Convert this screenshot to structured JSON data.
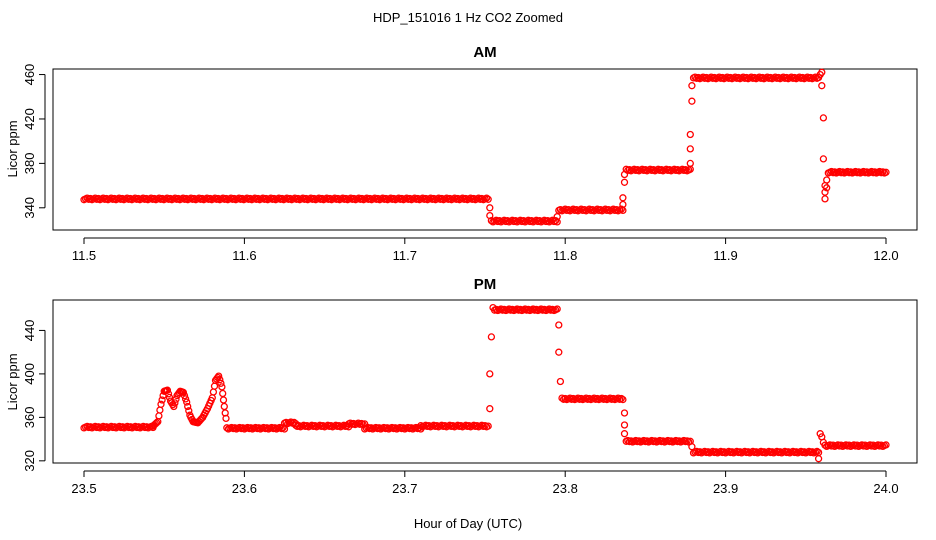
{
  "figure": {
    "title": "HDP_151016  1 Hz CO2 Zoomed",
    "xlabel": "Hour of Day (UTC)"
  },
  "style": {
    "point_color": "#ff0000",
    "marker": "open-circle"
  },
  "chart_data": [
    {
      "type": "scatter",
      "title": "AM",
      "xlabel": "",
      "ylabel": "Licor ppm",
      "xlim": [
        11.5,
        12.0
      ],
      "ylim": [
        320,
        465
      ],
      "xticks": [
        "11.5",
        "11.6",
        "11.7",
        "11.8",
        "11.9",
        "12.0"
      ],
      "yticks": [
        "340",
        "380",
        "420",
        "460"
      ],
      "grid": false,
      "segments": [
        {
          "x": [
            11.5,
            11.752
          ],
          "y": 348
        },
        {
          "x": [
            11.754,
            11.795
          ],
          "y": 328
        },
        {
          "x": [
            11.796,
            11.836
          ],
          "y": 338
        },
        {
          "x": [
            11.838,
            11.878
          ],
          "y": 374
        },
        {
          "x": [
            11.88,
            11.958
          ],
          "y": 457
        },
        {
          "x": [
            11.964,
            12.0
          ],
          "y": 372
        }
      ],
      "points": [
        {
          "x": 11.753,
          "y": 340
        },
        {
          "x": 11.753,
          "y": 333
        },
        {
          "x": 11.795,
          "y": 332
        },
        {
          "x": 11.836,
          "y": 343
        },
        {
          "x": 11.836,
          "y": 349
        },
        {
          "x": 11.837,
          "y": 363
        },
        {
          "x": 11.837,
          "y": 370
        },
        {
          "x": 11.878,
          "y": 380
        },
        {
          "x": 11.878,
          "y": 393
        },
        {
          "x": 11.878,
          "y": 406
        },
        {
          "x": 11.879,
          "y": 436
        },
        {
          "x": 11.879,
          "y": 450
        },
        {
          "x": 11.959,
          "y": 460
        },
        {
          "x": 11.96,
          "y": 462
        },
        {
          "x": 11.96,
          "y": 450
        },
        {
          "x": 11.961,
          "y": 421
        },
        {
          "x": 11.961,
          "y": 384
        },
        {
          "x": 11.962,
          "y": 360
        },
        {
          "x": 11.962,
          "y": 354
        },
        {
          "x": 11.962,
          "y": 348
        },
        {
          "x": 11.963,
          "y": 358
        },
        {
          "x": 11.963,
          "y": 365
        }
      ]
    },
    {
      "type": "scatter",
      "title": "PM",
      "xlabel": "",
      "ylabel": "Licor ppm",
      "xlim": [
        23.5,
        24.0
      ],
      "ylim": [
        318,
        468
      ],
      "xticks": [
        "23.5",
        "23.6",
        "23.7",
        "23.8",
        "23.9",
        "24.0"
      ],
      "yticks": [
        "320",
        "360",
        "400",
        "440"
      ],
      "grid": false,
      "segments": [
        {
          "x": [
            23.5,
            23.543
          ],
          "y": 351
        },
        {
          "x": [
            23.589,
            23.625
          ],
          "y": 350
        },
        {
          "x": [
            23.625,
            23.632
          ],
          "y": 355
        },
        {
          "x": [
            23.632,
            23.665
          ],
          "y": 352
        },
        {
          "x": [
            23.665,
            23.675
          ],
          "y": 354
        },
        {
          "x": [
            23.675,
            23.71
          ],
          "y": 350
        },
        {
          "x": [
            23.71,
            23.752
          ],
          "y": 352
        },
        {
          "x": [
            23.756,
            23.795
          ],
          "y": 459
        },
        {
          "x": [
            23.798,
            23.836
          ],
          "y": 377
        },
        {
          "x": [
            23.838,
            23.878
          ],
          "y": 338
        },
        {
          "x": [
            23.88,
            23.958
          ],
          "y": 328
        },
        {
          "x": [
            23.962,
            24.0
          ],
          "y": 334
        }
      ],
      "curve": [
        {
          "x": 23.543,
          "y": 352
        },
        {
          "x": 23.546,
          "y": 356
        },
        {
          "x": 23.548,
          "y": 372
        },
        {
          "x": 23.55,
          "y": 384
        },
        {
          "x": 23.552,
          "y": 385
        },
        {
          "x": 23.554,
          "y": 375
        },
        {
          "x": 23.556,
          "y": 370
        },
        {
          "x": 23.558,
          "y": 380
        },
        {
          "x": 23.56,
          "y": 384
        },
        {
          "x": 23.562,
          "y": 383
        },
        {
          "x": 23.564,
          "y": 374
        },
        {
          "x": 23.566,
          "y": 362
        },
        {
          "x": 23.568,
          "y": 356
        },
        {
          "x": 23.571,
          "y": 355
        },
        {
          "x": 23.574,
          "y": 360
        },
        {
          "x": 23.577,
          "y": 368
        },
        {
          "x": 23.58,
          "y": 378
        },
        {
          "x": 23.582,
          "y": 394
        },
        {
          "x": 23.584,
          "y": 398
        },
        {
          "x": 23.586,
          "y": 388
        },
        {
          "x": 23.587,
          "y": 376
        },
        {
          "x": 23.588,
          "y": 364
        },
        {
          "x": 23.589,
          "y": 354
        }
      ],
      "points": [
        {
          "x": 23.753,
          "y": 368
        },
        {
          "x": 23.753,
          "y": 400
        },
        {
          "x": 23.754,
          "y": 434
        },
        {
          "x": 23.755,
          "y": 461
        },
        {
          "x": 23.796,
          "y": 445
        },
        {
          "x": 23.796,
          "y": 420
        },
        {
          "x": 23.797,
          "y": 393
        },
        {
          "x": 23.837,
          "y": 364
        },
        {
          "x": 23.837,
          "y": 353
        },
        {
          "x": 23.837,
          "y": 345
        },
        {
          "x": 23.879,
          "y": 333
        },
        {
          "x": 23.958,
          "y": 322
        },
        {
          "x": 23.959,
          "y": 345
        },
        {
          "x": 23.96,
          "y": 342
        },
        {
          "x": 23.961,
          "y": 337
        }
      ]
    }
  ]
}
